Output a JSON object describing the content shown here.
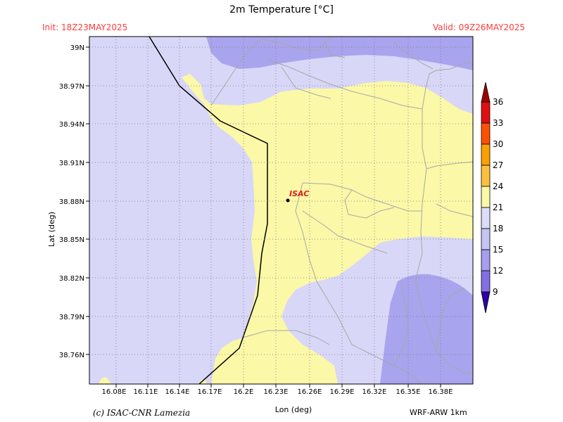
{
  "header": {
    "title": "2m Temperature [°C]",
    "init": "Init: 18Z23MAY2025",
    "valid": "Valid: 09Z26MAY2025"
  },
  "axes": {
    "xlabel": "Lon (deg)",
    "ylabel": "Lat (deg)",
    "x_ticks": [
      "16.08E",
      "16.11E",
      "16.14E",
      "16.17E",
      "16.2E",
      "16.23E",
      "16.26E",
      "16.29E",
      "16.32E",
      "16.35E",
      "16.38E"
    ],
    "y_ticks": [
      "39N",
      "38.97N",
      "38.94N",
      "38.91N",
      "38.88N",
      "38.85N",
      "38.82N",
      "38.79N",
      "38.76N"
    ]
  },
  "colorbar": {
    "levels": [
      "9",
      "12",
      "15",
      "18",
      "21",
      "24",
      "27",
      "30",
      "33",
      "36"
    ],
    "colors": [
      "#2b00a8",
      "#8470e6",
      "#a79ef0",
      "#c6c4f4",
      "#dddcf8",
      "#fbf8a8",
      "#fcc040",
      "#fca000",
      "#fc5000",
      "#e01010",
      "#a00000"
    ]
  },
  "marker": {
    "label": "ISAC"
  },
  "footer": {
    "left": "(c) ISAC-CNR Lamezia",
    "right": "WRF-ARW 1km"
  },
  "colors": {
    "t15_18": "#a9a4ee",
    "t18_21": "#d8d7f8",
    "t21_24": "#fbf8a8",
    "marker_label": "#e02020",
    "header_text": "#ff3b3b"
  }
}
